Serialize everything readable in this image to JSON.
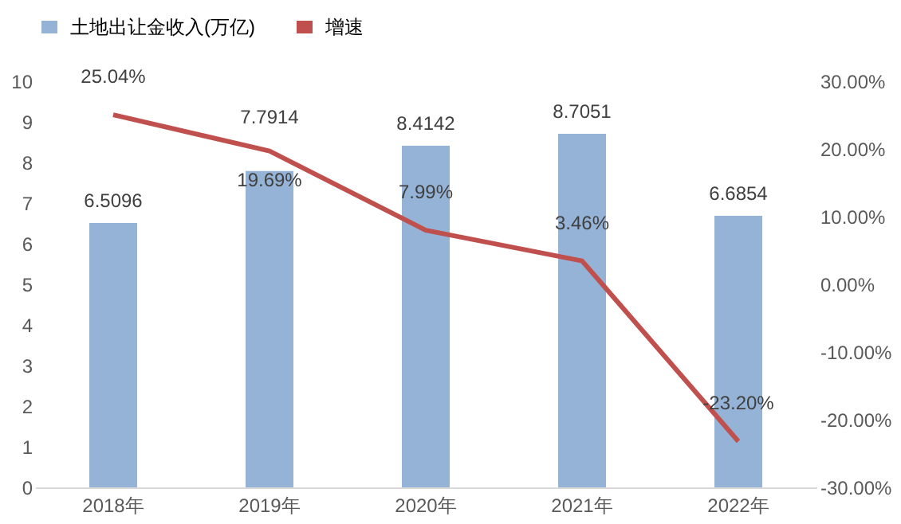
{
  "chart_data": {
    "type": "bar",
    "categories": [
      "2018年",
      "2019年",
      "2020年",
      "2021年",
      "2022年"
    ],
    "series": [
      {
        "name": "土地出让金收入(万亿)",
        "color": "#95b3d7",
        "values": [
          6.5096,
          7.7914,
          8.4142,
          8.7051,
          6.6854
        ],
        "value_labels": [
          "6.5096",
          "7.7914",
          "8.4142",
          "8.7051",
          "6.6854"
        ]
      },
      {
        "name": "增速",
        "type": "line",
        "axis": "y2",
        "color": "#c0504d",
        "values": [
          25.04,
          19.69,
          7.99,
          3.46,
          -23.2
        ],
        "value_labels": [
          "25.04%",
          "19.69%",
          "7.99%",
          "3.46%",
          "-23.20%"
        ]
      }
    ],
    "ylim": [
      0,
      10
    ],
    "yticks": [
      0,
      1,
      2,
      3,
      4,
      5,
      6,
      7,
      8,
      9,
      10
    ],
    "y2lim": [
      -30,
      30
    ],
    "y2ticks": [
      {
        "value": -30,
        "label": "-30.00%"
      },
      {
        "value": -20,
        "label": "-20.00%"
      },
      {
        "value": -10,
        "label": "-10.00%"
      },
      {
        "value": 0,
        "label": "0.00%"
      },
      {
        "value": 10,
        "label": "10.00%"
      },
      {
        "value": 20,
        "label": "20.00%"
      },
      {
        "value": 30,
        "label": "30.00%"
      }
    ],
    "legend": "top",
    "grid": false,
    "marker": "none",
    "line_style": "solid"
  }
}
